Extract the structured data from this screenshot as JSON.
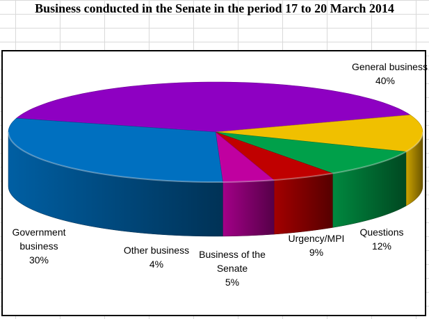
{
  "title": "Business conducted in the Senate in the period 17 to 20 March 2014",
  "chart_data": {
    "type": "pie",
    "categories": [
      "General business",
      "Questions",
      "Urgency/MPI",
      "Business of the Senate",
      "Other business",
      "Government business"
    ],
    "values": [
      40,
      12,
      9,
      5,
      4,
      30
    ],
    "value_labels": [
      "40%",
      "12%",
      "9%",
      "5%",
      "4%",
      "30%"
    ],
    "colors": [
      "#8E00C2",
      "#F0C000",
      "#00A04A",
      "#C00000",
      "#C000A0",
      "#0070C0"
    ],
    "style": "3d",
    "legend": "none"
  }
}
